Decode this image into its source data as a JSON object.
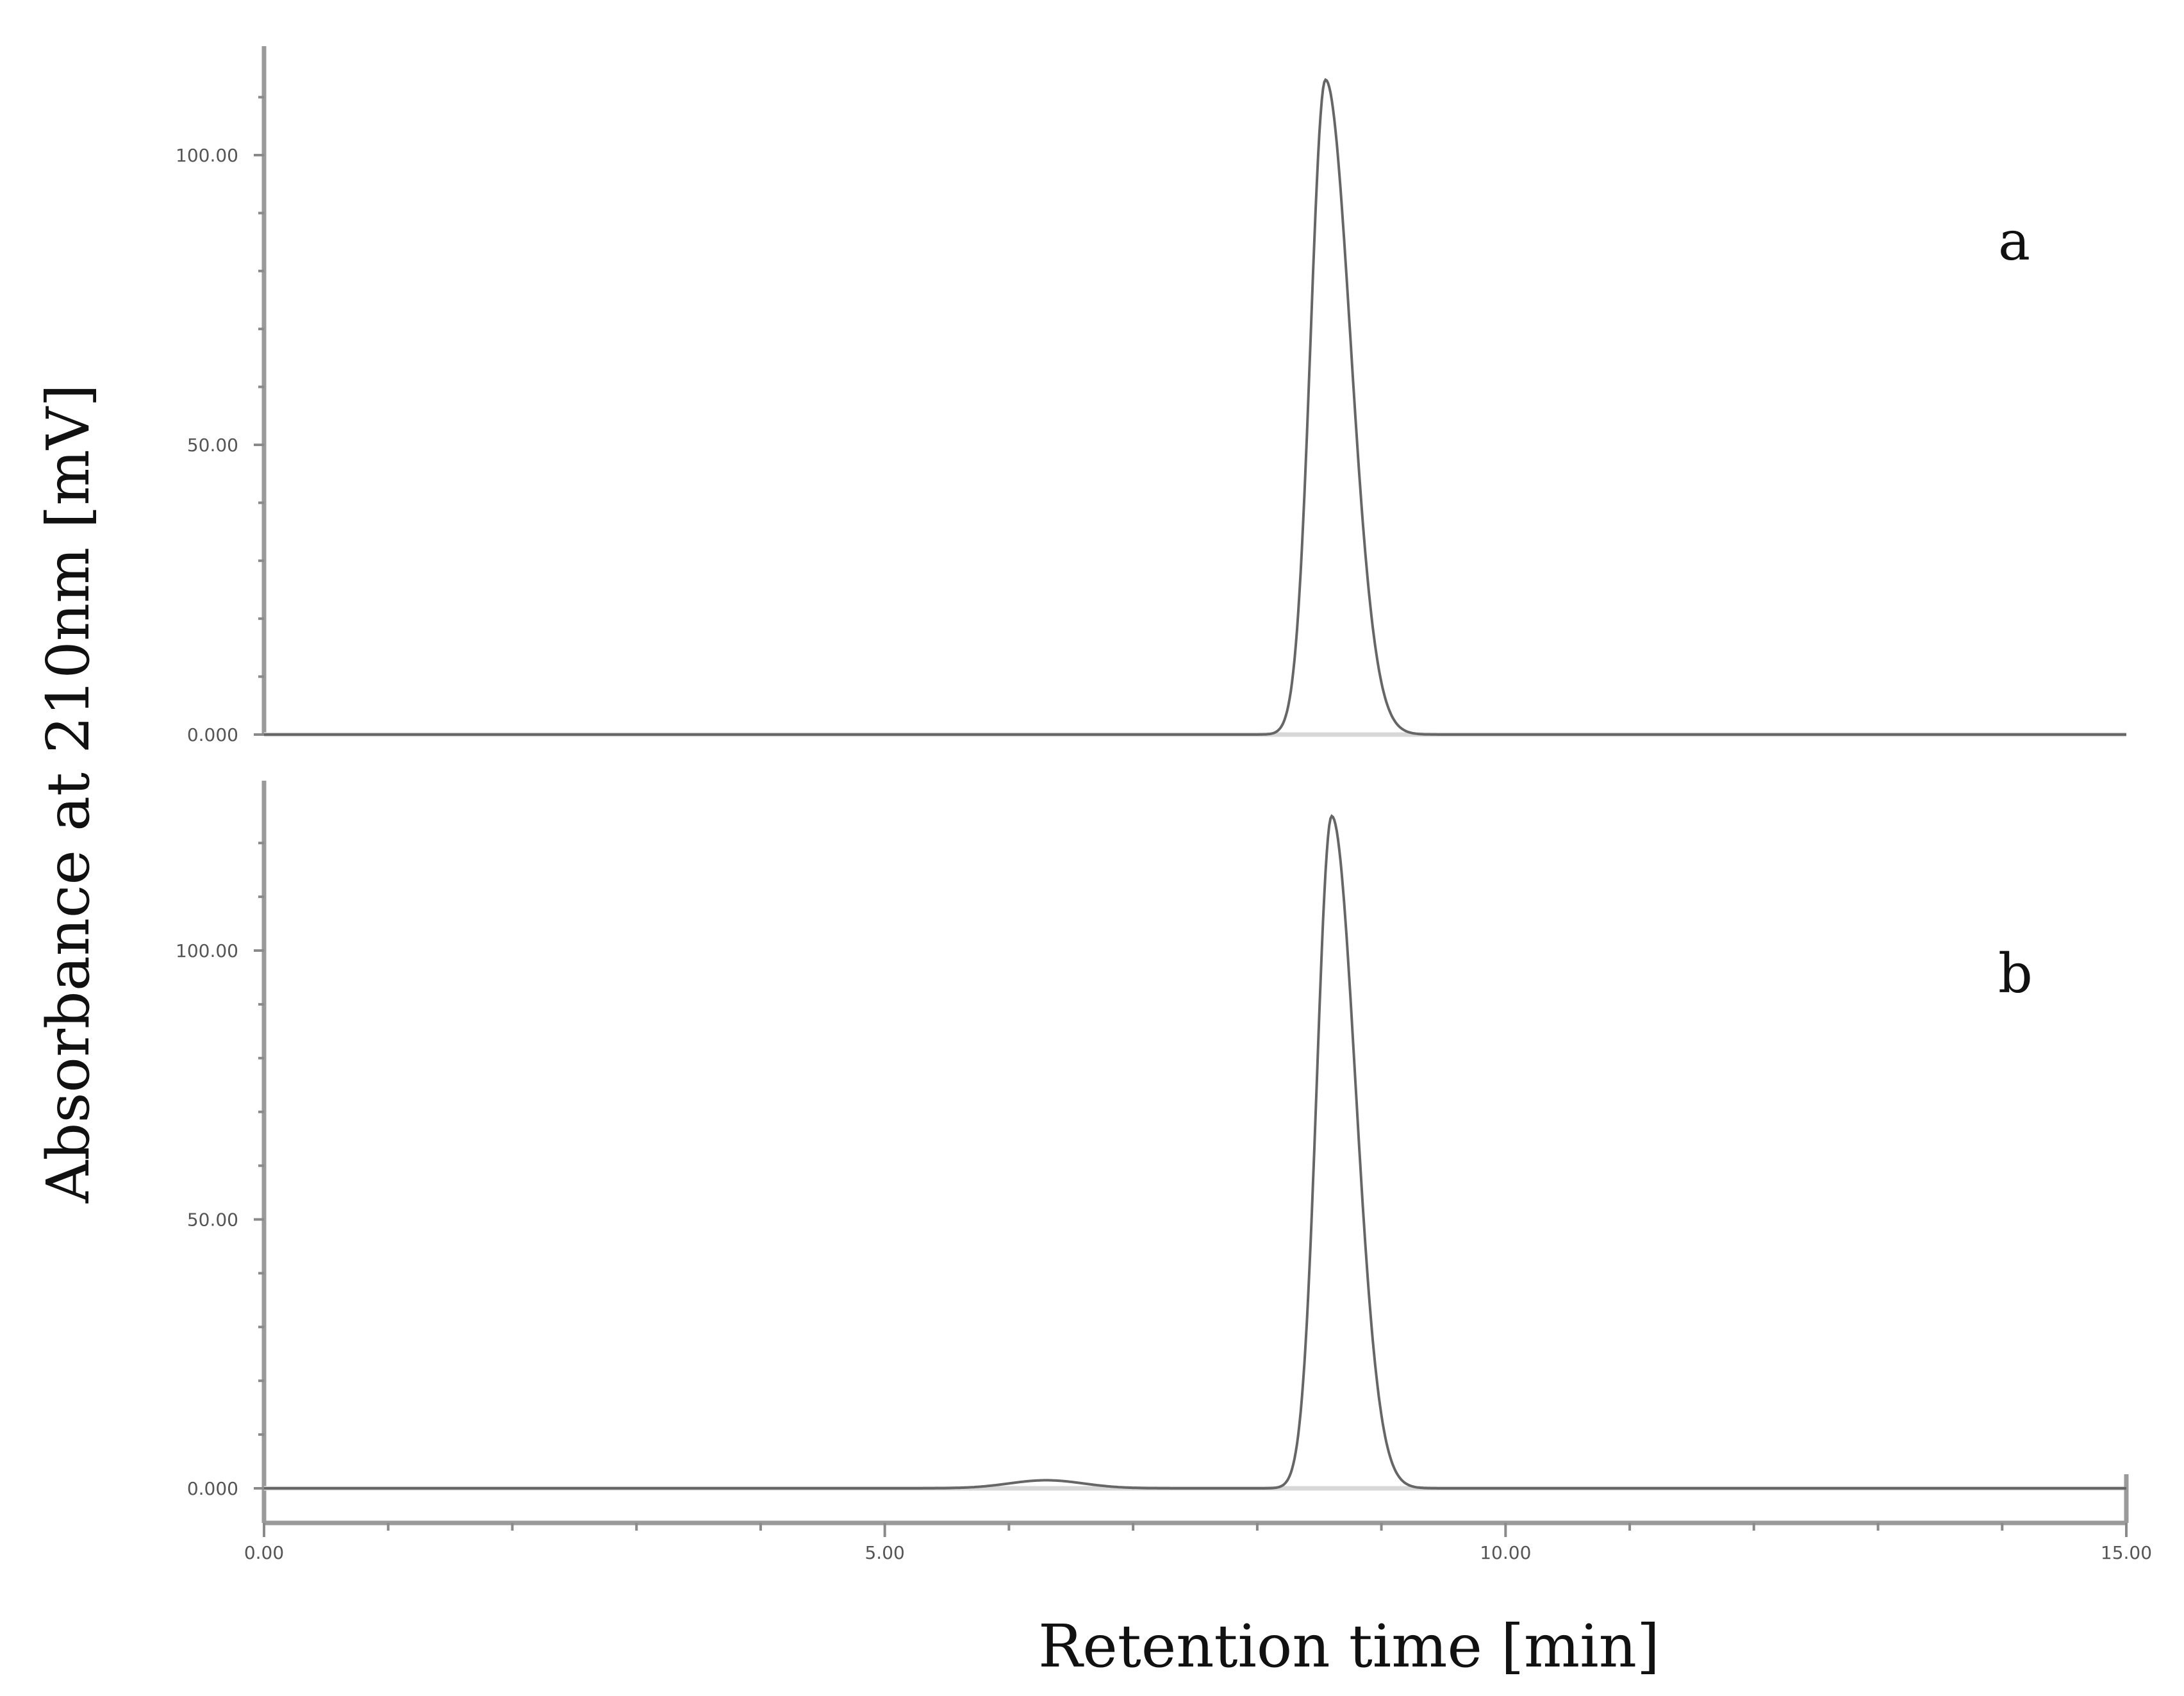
{
  "chart_data": {
    "type": "line",
    "ylabel": "Absorbance at 210nm [mV]",
    "xlabel": "Retention time [min]",
    "xlim": [
      0,
      15
    ],
    "x_ticks": [
      "0.00",
      "5.00",
      "10.00",
      "15.00"
    ],
    "panels": [
      {
        "label": "a",
        "ylim": [
          -1,
          118
        ],
        "y_ticks": [
          {
            "value": 0,
            "label": "0.000"
          },
          {
            "value": 50,
            "label": "50.00"
          },
          {
            "value": 100,
            "label": "100.00"
          }
        ],
        "peak": {
          "rt": 8.55,
          "height": 113,
          "sigma_left": 0.12,
          "sigma_right": 0.2
        },
        "minor_bumps": []
      },
      {
        "label": "b",
        "ylim": [
          -7,
          125
        ],
        "y_ticks": [
          {
            "value": 0,
            "label": "0.000"
          },
          {
            "value": 50,
            "label": "50.00"
          },
          {
            "value": 100,
            "label": "100.00"
          }
        ],
        "peak": {
          "rt": 8.6,
          "height": 125,
          "sigma_left": 0.12,
          "sigma_right": 0.19
        },
        "minor_bumps": [
          {
            "rt": 6.3,
            "height": 1.5,
            "sigma": 0.3
          }
        ]
      }
    ]
  }
}
